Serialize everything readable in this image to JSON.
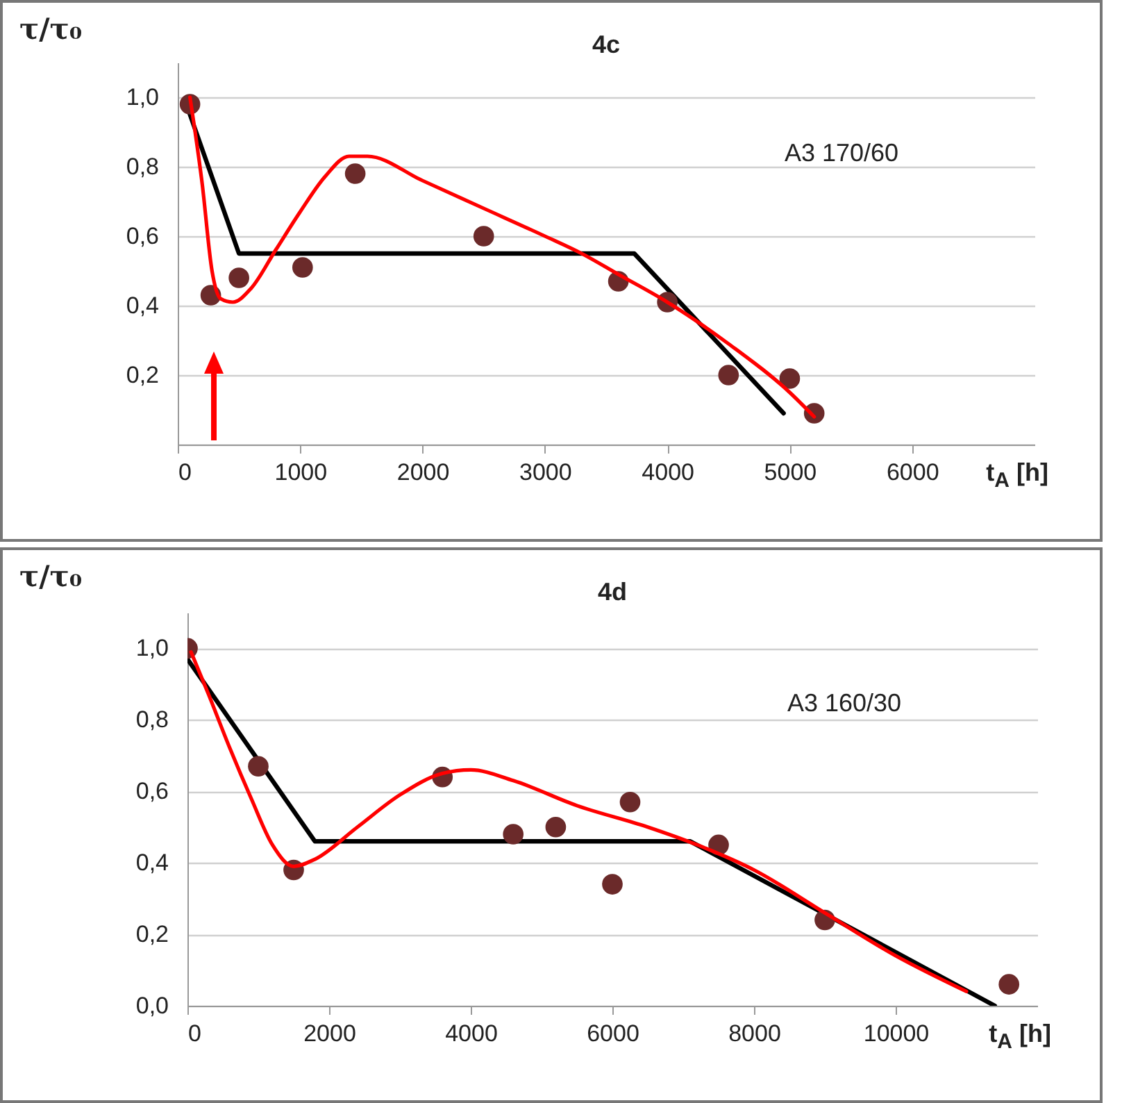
{
  "chart_data": [
    {
      "type": "scatter",
      "title": "4c",
      "ylabel": "τ/τ₀",
      "xlabel": "t$_{A}$ [h]",
      "annotations": [
        "A3  170/60"
      ],
      "grid": "y",
      "line_style": "solid",
      "xlim": [
        0,
        7000
      ],
      "xticks": [
        0,
        1000,
        2000,
        3000,
        4000,
        5000,
        6000
      ],
      "ylim": [
        0,
        1.1
      ],
      "yticks": [
        {
          "value": 0,
          "label": null
        },
        {
          "value": 0.2,
          "label": "0,2"
        },
        {
          "value": 0.4,
          "label": "0,4"
        },
        {
          "value": 0.6,
          "label": "0,6"
        },
        {
          "value": 0.8,
          "label": "0,8"
        },
        {
          "value": 1.0,
          "label": "1,0"
        }
      ],
      "series": [
        {
          "type": "line",
          "color": "#000000",
          "x": [
            80,
            500,
            3730,
            4950
          ],
          "values": [
            0.97,
            0.55,
            0.55,
            0.09
          ]
        },
        {
          "marker": "circle",
          "color": "#6b2a2a",
          "x": [
            100,
            270,
            500,
            1020,
            1450,
            2500,
            3600,
            4000,
            4500,
            5000,
            5200
          ],
          "values": [
            0.98,
            0.43,
            0.48,
            0.51,
            0.78,
            0.6,
            0.47,
            0.41,
            0.2,
            0.19,
            0.09
          ]
        },
        {
          "type": "line",
          "color": "#ff0000",
          "x": [
            100,
            200,
            280,
            350,
            450,
            600,
            800,
            1000,
            1200,
            1400,
            1550,
            2000,
            2500,
            3000,
            3300,
            3600,
            4000,
            4500,
            5000,
            5200
          ],
          "values": [
            1.0,
            0.75,
            0.5,
            0.42,
            0.41,
            0.45,
            0.56,
            0.67,
            0.77,
            0.83,
            0.83,
            0.76,
            0.68,
            0.6,
            0.55,
            0.49,
            0.41,
            0.29,
            0.15,
            0.08
          ]
        }
      ]
    },
    {
      "type": "scatter",
      "title": "4d",
      "ylabel": "τ/τ₀",
      "xlabel": "t$_{A}$ [h]",
      "annotations": [
        "A3  160/30"
      ],
      "grid": "y",
      "line_style": "solid",
      "xlim": [
        0,
        12000
      ],
      "xticks": [
        0,
        2000,
        4000,
        6000,
        8000,
        10000
      ],
      "ylim": [
        0,
        1.1
      ],
      "yticks": [
        {
          "value": 0,
          "label": "0,0"
        },
        {
          "value": 0.2,
          "label": "0,2"
        },
        {
          "value": 0.4,
          "label": "0,4"
        },
        {
          "value": 0.6,
          "label": "0,6"
        },
        {
          "value": 0.8,
          "label": "0,8"
        },
        {
          "value": 1.0,
          "label": "1,0"
        }
      ],
      "series": [
        {
          "type": "line",
          "color": "#000000",
          "x": [
            0,
            1800,
            7100,
            11400
          ],
          "values": [
            0.97,
            0.46,
            0.46,
            0.0
          ]
        },
        {
          "marker": "circle",
          "color": "#6b2a2a",
          "x": [
            0,
            1000,
            1500,
            3600,
            4600,
            5200,
            6000,
            6250,
            7500,
            9000,
            11600
          ],
          "values": [
            1.0,
            0.67,
            0.38,
            0.64,
            0.48,
            0.5,
            0.34,
            0.57,
            0.45,
            0.24,
            0.06
          ]
        },
        {
          "type": "line",
          "color": "#ff0000",
          "x": [
            50,
            300,
            600,
            900,
            1200,
            1500,
            1800,
            2400,
            3000,
            3600,
            4000,
            4600,
            5500,
            6500,
            7200,
            8000,
            9000,
            10000,
            11000
          ],
          "values": [
            0.99,
            0.87,
            0.72,
            0.58,
            0.45,
            0.39,
            0.41,
            0.5,
            0.59,
            0.65,
            0.66,
            0.63,
            0.56,
            0.5,
            0.45,
            0.38,
            0.26,
            0.14,
            0.04
          ]
        }
      ]
    }
  ]
}
